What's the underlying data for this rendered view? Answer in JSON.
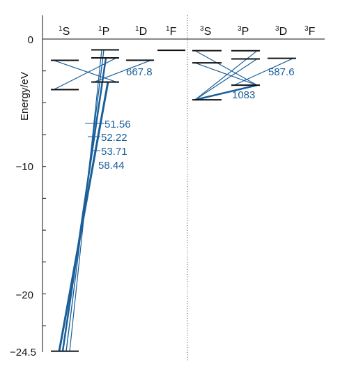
{
  "colors": {
    "level": "#111111",
    "line": "#1a5f9a",
    "label": "#1a5f9a",
    "axis": "#111111"
  },
  "axis": {
    "title": "Energy/eV",
    "ticks": [
      {
        "value": 0,
        "label": "0"
      },
      {
        "value": -10,
        "label": "−10"
      },
      {
        "value": -20,
        "label": "−20"
      },
      {
        "value": -24.5,
        "label": "−24.5"
      }
    ]
  },
  "columns": [
    {
      "key": "1S",
      "mult": "1",
      "term": "S"
    },
    {
      "key": "1P",
      "mult": "1",
      "term": "P"
    },
    {
      "key": "1D",
      "mult": "1",
      "term": "D"
    },
    {
      "key": "1F",
      "mult": "1",
      "term": "F"
    },
    {
      "key": "3S",
      "mult": "3",
      "term": "S"
    },
    {
      "key": "3P",
      "mult": "3",
      "term": "P"
    },
    {
      "key": "3D",
      "mult": "3",
      "term": "D"
    },
    {
      "key": "3F",
      "mult": "3",
      "term": "F"
    }
  ],
  "levels": [
    {
      "id": "g",
      "col": "1S",
      "energy": -24.5
    },
    {
      "id": "s1",
      "col": "1S",
      "energy": -3.97
    },
    {
      "id": "s2",
      "col": "1S",
      "energy": -1.67
    },
    {
      "id": "p1",
      "col": "1P",
      "energy": -3.37
    },
    {
      "id": "p2",
      "col": "1P",
      "energy": -1.48
    },
    {
      "id": "p3",
      "col": "1P",
      "energy": -0.85
    },
    {
      "id": "d1",
      "col": "1D",
      "energy": -1.66
    },
    {
      "id": "f1",
      "col": "1F",
      "energy": -0.88
    },
    {
      "id": "ts1",
      "col": "3S",
      "energy": -4.77
    },
    {
      "id": "ts2",
      "col": "3S",
      "energy": -1.87
    },
    {
      "id": "ts3",
      "col": "3S",
      "energy": -0.91
    },
    {
      "id": "tp1",
      "col": "3P",
      "energy": -3.62
    },
    {
      "id": "tp2",
      "col": "3P",
      "energy": -1.56
    },
    {
      "id": "tp3",
      "col": "3P",
      "energy": -0.92
    },
    {
      "id": "td1",
      "col": "3D",
      "energy": -1.51
    }
  ],
  "transitions": [
    {
      "from": "g",
      "to": "p1",
      "weight": 3
    },
    {
      "from": "g",
      "to": "p2",
      "weight": 2.5
    },
    {
      "from": "g",
      "to": "p3",
      "weight": 1.4
    },
    {
      "from": "g",
      "to": "p3",
      "weight": 1.2
    },
    {
      "from": "s1",
      "to": "p2",
      "weight": 1.2
    },
    {
      "from": "s2",
      "to": "p1",
      "weight": 1.2
    },
    {
      "from": "p1",
      "to": "d1",
      "weight": 1.2
    },
    {
      "from": "ts1",
      "to": "tp1",
      "weight": 2.5
    },
    {
      "from": "ts1",
      "to": "tp2",
      "weight": 1.2
    },
    {
      "from": "ts1",
      "to": "tp3",
      "weight": 1.2
    },
    {
      "from": "ts2",
      "to": "tp1",
      "weight": 1.2
    },
    {
      "from": "ts3",
      "to": "tp1",
      "weight": 1.2
    },
    {
      "from": "tp1",
      "to": "td1",
      "weight": 1.2
    }
  ],
  "wavelength_labels": [
    {
      "text": "667.8"
    },
    {
      "text": "587.6"
    },
    {
      "text": "1083"
    },
    {
      "text": "51.56"
    },
    {
      "text": "52.22"
    },
    {
      "text": "53.71"
    },
    {
      "text": "58.44"
    }
  ]
}
